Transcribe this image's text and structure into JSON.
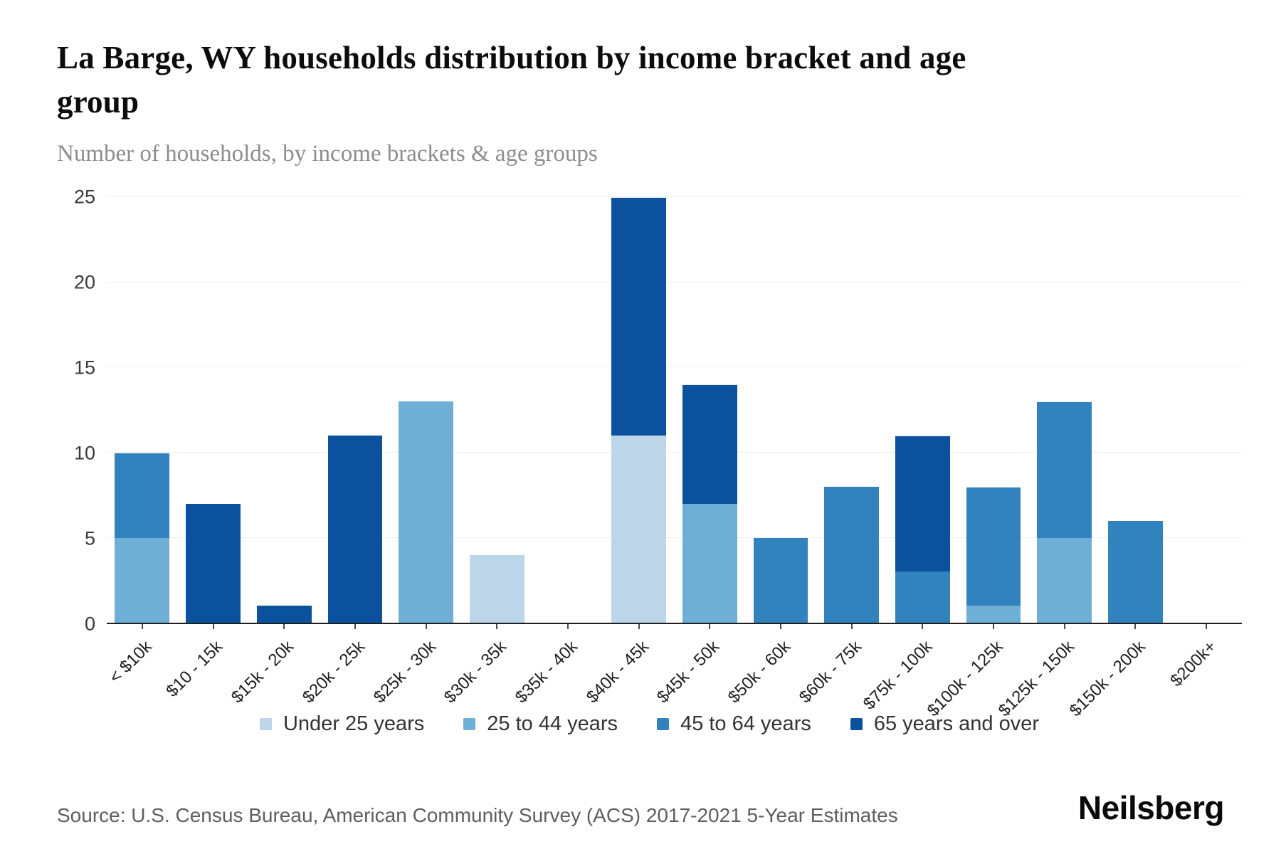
{
  "header": {
    "title": "La Barge, WY households distribution by income bracket and age group",
    "subtitle": "Number of households, by income brackets & age groups"
  },
  "footer": {
    "source": "Source: U.S. Census Bureau, American Community Survey (ACS) 2017-2021 5-Year Estimates",
    "brand": "Neilsberg"
  },
  "chart_data": {
    "type": "bar",
    "stacked": true,
    "title": "La Barge, WY households distribution by income bracket and age group",
    "subtitle": "Number of households, by income brackets & age groups",
    "xlabel": "",
    "ylabel": "Number of households",
    "ylim": [
      0,
      25
    ],
    "yticks": [
      0,
      5,
      10,
      15,
      20,
      25
    ],
    "grid": "horizontal",
    "legend_position": "bottom",
    "categories": [
      "< $10k",
      "$10 - 15k",
      "$15k - 20k",
      "$20k - 25k",
      "$25k - 30k",
      "$30k - 35k",
      "$35k - 40k",
      "$40k - 45k",
      "$45k - 50k",
      "$50k - 60k",
      "$60k - 75k",
      "$75k - 100k",
      "$100k - 125k",
      "$125k - 150k",
      "$150k - 200k",
      "$200k+"
    ],
    "series": [
      {
        "name": "Under 25 years",
        "color": "#bdd5e8",
        "values": [
          0,
          0,
          0,
          0,
          0,
          4,
          0,
          11,
          0,
          0,
          0,
          0,
          0,
          0,
          0,
          0
        ]
      },
      {
        "name": "25 to 44 years",
        "color": "#6fafd6",
        "values": [
          5,
          0,
          0,
          0,
          13,
          0,
          0,
          0,
          7,
          0,
          0,
          0,
          1,
          5,
          0,
          0
        ]
      },
      {
        "name": "45 to 64 years",
        "color": "#3182bd",
        "values": [
          5,
          0,
          0,
          0,
          0,
          0,
          0,
          0,
          0,
          5,
          8,
          3,
          7,
          8,
          6,
          0
        ]
      },
      {
        "name": "65 years and over",
        "color": "#0b519e",
        "values": [
          0,
          7,
          1,
          11,
          0,
          0,
          0,
          14,
          7,
          0,
          0,
          8,
          0,
          0,
          0,
          0
        ]
      }
    ],
    "totals": [
      10,
      7,
      1,
      11,
      13,
      4,
      0,
      25,
      14,
      5,
      8,
      11,
      8,
      13,
      6,
      0
    ]
  }
}
